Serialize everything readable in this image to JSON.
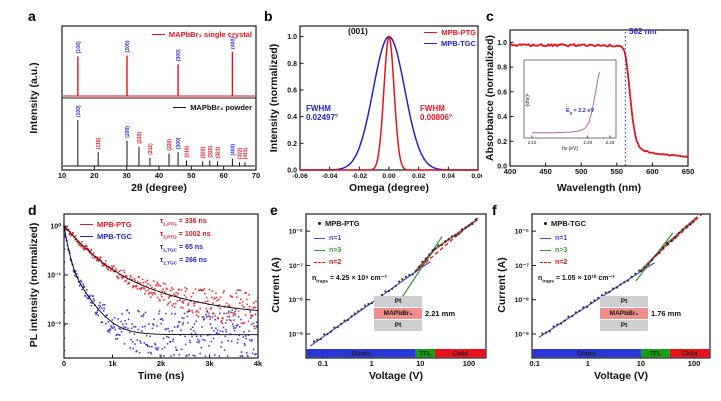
{
  "colors": {
    "red": "#e8121a",
    "blue": "#2323cc",
    "navy_label": "#2a2ad0",
    "green": "#2e9b2e",
    "black": "#111111",
    "region_blue": "#2a35d6",
    "region_green": "#17a017",
    "region_red": "#e8121a",
    "region_text": "#202020",
    "device_gray": "#cfcfcf",
    "device_salmon": "#f0908d",
    "device_text_red": "#c01010",
    "inset_curve": "#b561a8",
    "cutoff_blue": "#2a2ad0"
  },
  "chart_data": [
    {
      "panel": "a",
      "type": "bar",
      "subtype": "xrd-sticks",
      "xlabel": "2θ (degree)",
      "ylabel": "Intensity (a.u.)",
      "xlim": [
        10,
        70
      ],
      "x_ticks": [
        "10",
        "20",
        "30",
        "40",
        "50",
        "60",
        "70"
      ],
      "series": [
        {
          "name": "MAPbBr₃ single crystal",
          "color": "#e8121a",
          "label_color": "#2a2ad0",
          "peaks": [
            {
              "x": 14.9,
              "h": 0.9,
              "label": "(100)"
            },
            {
              "x": 30.1,
              "h": 0.92,
              "label": "(200)"
            },
            {
              "x": 45.9,
              "h": 0.72,
              "label": "(300)"
            },
            {
              "x": 62.7,
              "h": 1.0,
              "label": "(400)"
            }
          ]
        },
        {
          "name": "MAPbBr₃ powder",
          "color": "#111111",
          "peaks": [
            {
              "x": 14.9,
              "h": 1.0,
              "label": "(100)",
              "lc": "#2a2ad0"
            },
            {
              "x": 21.2,
              "h": 0.3,
              "label": "(110)",
              "lc": "#e8121a"
            },
            {
              "x": 30.1,
              "h": 0.55,
              "label": "(200)",
              "lc": "#2a2ad0"
            },
            {
              "x": 33.8,
              "h": 0.42,
              "label": "(210)",
              "lc": "#e8121a"
            },
            {
              "x": 37.2,
              "h": 0.18,
              "label": "(211)",
              "lc": "#e8121a"
            },
            {
              "x": 43.1,
              "h": 0.27,
              "label": "(220)",
              "lc": "#e8121a"
            },
            {
              "x": 45.9,
              "h": 0.3,
              "label": "(300)",
              "lc": "#2a2ad0"
            },
            {
              "x": 48.5,
              "h": 0.12,
              "label": "(310)",
              "lc": "#e8121a"
            },
            {
              "x": 53.5,
              "h": 0.1,
              "label": "(222)",
              "lc": "#e8121a"
            },
            {
              "x": 55.7,
              "h": 0.12,
              "label": "(320)",
              "lc": "#e8121a"
            },
            {
              "x": 58.1,
              "h": 0.1,
              "label": "(321)",
              "lc": "#e8121a"
            },
            {
              "x": 62.7,
              "h": 0.16,
              "label": "(400)",
              "lc": "#2a2ad0"
            },
            {
              "x": 64.9,
              "h": 0.08,
              "label": "(322)",
              "lc": "#e8121a"
            },
            {
              "x": 66.6,
              "h": 0.08,
              "label": "(411)",
              "lc": "#e8121a"
            }
          ]
        }
      ]
    },
    {
      "panel": "b",
      "type": "line",
      "xlabel": "Omega (degree)",
      "ylabel": "Intensity (normalized)",
      "xlim": [
        -0.06,
        0.06
      ],
      "x_ticks": [
        "-0.06",
        "-0.04",
        "-0.02",
        "0.00",
        "0.02",
        "0.04",
        "0.06"
      ],
      "ylim": [
        0,
        1.08
      ],
      "y_ticks": [
        "0.0",
        "0.2",
        "0.4",
        "0.6",
        "0.8",
        "1.0"
      ],
      "peak_label": "(001)",
      "series": [
        {
          "name": "MPB-PTG",
          "color": "#e8121a",
          "center": 0,
          "fwhm": 0.00806
        },
        {
          "name": "MPB-TGC",
          "color": "#2323cc",
          "center": 0,
          "fwhm": 0.02497
        }
      ],
      "annotations": [
        {
          "line1": "FWHM",
          "line2": "0.02497°",
          "color": "#2323cc"
        },
        {
          "line1": "FWHM",
          "line2": "0.00806°",
          "color": "#e8121a"
        }
      ]
    },
    {
      "panel": "c",
      "type": "line",
      "xlabel": "Wavelength (nm)",
      "ylabel": "Absorbance (normalized)",
      "xlim": [
        400,
        650
      ],
      "x_ticks": [
        "400",
        "450",
        "500",
        "550",
        "600",
        "650"
      ],
      "ylim": [
        0,
        1.1
      ],
      "y_ticks": [
        "0.0",
        "0.2",
        "0.4",
        "0.6",
        "0.8",
        "1.0"
      ],
      "cutoff_nm": 562,
      "cutoff_label": "562 nm",
      "series": [
        {
          "name": "absorbance",
          "color": "#e8121a",
          "points": [
            [
              400,
              0.975
            ],
            [
              430,
              0.978
            ],
            [
              460,
              0.975
            ],
            [
              490,
              0.978
            ],
            [
              520,
              0.976
            ],
            [
              545,
              0.972
            ],
            [
              556,
              0.965
            ],
            [
              560,
              0.945
            ],
            [
              563,
              0.87
            ],
            [
              566,
              0.72
            ],
            [
              569,
              0.55
            ],
            [
              572,
              0.4
            ],
            [
              575,
              0.28
            ],
            [
              578,
              0.2
            ],
            [
              582,
              0.155
            ],
            [
              588,
              0.125
            ],
            [
              600,
              0.105
            ],
            [
              620,
              0.09
            ],
            [
              650,
              0.075
            ]
          ]
        }
      ],
      "inset": {
        "xlabel": "hν (eV)",
        "ylabel": "(αhν)²",
        "x_ticks": [
          "2.10",
          "2.20",
          "2.24"
        ],
        "x_tick_vals": [
          2.1,
          2.2,
          2.24
        ],
        "eg": {
          "sym": "E",
          "sub": "g",
          "rest": " = 2.2 eV"
        },
        "color": "#b561a8",
        "points": [
          [
            2.1,
            0.02
          ],
          [
            2.14,
            0.02
          ],
          [
            2.17,
            0.03
          ],
          [
            2.185,
            0.05
          ],
          [
            2.195,
            0.09
          ],
          [
            2.202,
            0.18
          ],
          [
            2.208,
            0.38
          ],
          [
            2.213,
            0.62
          ],
          [
            2.217,
            0.82
          ],
          [
            2.221,
            1.0
          ]
        ]
      }
    },
    {
      "panel": "d",
      "type": "line",
      "xlabel": "Time (ns)",
      "ylabel": "PL intensity (normalized)",
      "xlim": [
        0,
        4000
      ],
      "x_ticks": [
        "0",
        "1k",
        "2k",
        "3k",
        "4k"
      ],
      "ylog": true,
      "y_ticks": [
        "10⁰",
        "10⁻¹",
        "10⁻²"
      ],
      "y_tick_logs": [
        0,
        -1,
        -2
      ],
      "series": [
        {
          "name": "MPB-PTG",
          "color": "#e8121a",
          "tau1": 336,
          "tau2": 1002,
          "a1": 0.8,
          "a2": 0.2,
          "floor": 0.015
        },
        {
          "name": "MPB-TGC",
          "color": "#2323cc",
          "tau1": 65,
          "tau2": 266,
          "a1": 0.8,
          "a2": 0.2,
          "floor": 0.006
        }
      ],
      "fit_color": "#000000",
      "annotations": [
        {
          "sym": "τ",
          "sub": "1,PTG",
          "rest": " = 336 ns",
          "color": "#e8121a"
        },
        {
          "sym": "τ",
          "sub": "2,PTG",
          "rest": " = 1002 ns",
          "color": "#e8121a"
        },
        {
          "sym": "τ",
          "sub": "1,TGC",
          "rest": " = 65 ns",
          "color": "#2323cc"
        },
        {
          "sym": "τ",
          "sub": "2,TGC",
          "rest": " = 266 ns",
          "color": "#2323cc"
        }
      ]
    },
    {
      "panel": "e",
      "type": "scatter",
      "sample": "MPB-PTG",
      "xlabel": "Voltage (V)",
      "ylabel": "Current (A)",
      "x_ticks": [
        "0.1",
        "1",
        "10",
        "100"
      ],
      "x_tick_vals": [
        0.1,
        1,
        10,
        100
      ],
      "y_ticks": [
        "10⁻⁶",
        "10⁻⁷",
        "10⁻⁸",
        "10⁻⁹"
      ],
      "y_tick_logs": [
        -6,
        -7,
        -8,
        -9
      ],
      "legend": [
        {
          "label": "n=1",
          "color": "#4a4ad8",
          "dash": false
        },
        {
          "label": "n>3",
          "color": "#2e9b2e",
          "dash": false
        },
        {
          "label": "n=2",
          "color": "#e8121a",
          "dash": true
        }
      ],
      "ntraps": {
        "sym": "n",
        "sub": "traps",
        "rest": " = 4.25 × 10⁹ cm⁻³"
      },
      "device": {
        "top": "Pt",
        "mid": "MAPbBr₃",
        "bottom": "Pt",
        "thickness": "2.21 mm"
      },
      "regions": [
        {
          "label": "Ohmic",
          "color": "#2a35d6",
          "from": 0.045,
          "to": 8
        },
        {
          "label": "TFL",
          "color": "#17a017",
          "from": 8,
          "to": 20
        },
        {
          "label": "Child",
          "color": "#e8121a",
          "from": 20,
          "to": 230
        }
      ],
      "data_segments": [
        [
          [
            0.065,
            5.5e-10
          ],
          [
            8,
            6.8e-08
          ]
        ],
        [
          [
            8,
            6.8e-08
          ],
          [
            20,
            3e-07
          ]
        ],
        [
          [
            20,
            3e-07
          ],
          [
            150,
            2.2e-06
          ]
        ]
      ],
      "lines": {
        "n1": [
          [
            0.055,
            4.5e-10
          ],
          [
            16,
            1.3e-07
          ]
        ],
        "n3": [
          [
            4,
            1.05e-08
          ],
          [
            28,
            7e-07
          ]
        ],
        "n2": [
          [
            10,
            9e-08
          ],
          [
            160,
            2.6e-06
          ]
        ]
      }
    },
    {
      "panel": "f",
      "type": "scatter",
      "sample": "MPB-TGC",
      "xlabel": "Voltage (V)",
      "ylabel": "Current (A)",
      "x_ticks": [
        "0.1",
        "1",
        "10",
        "100"
      ],
      "x_tick_vals": [
        0.1,
        1,
        10,
        100
      ],
      "y_ticks": [
        "10⁻⁶",
        "10⁻⁷",
        "10⁻⁸",
        "10⁻⁹"
      ],
      "y_tick_logs": [
        -6,
        -7,
        -8,
        -9
      ],
      "legend": [
        {
          "label": "n=1",
          "color": "#4a4ad8",
          "dash": false
        },
        {
          "label": "n>3",
          "color": "#2e9b2e",
          "dash": false
        },
        {
          "label": "n=2",
          "color": "#e8121a",
          "dash": true
        }
      ],
      "ntraps": {
        "sym": "n",
        "sub": "traps",
        "rest": " = 1.05 × 10¹⁰ cm⁻³"
      },
      "device": {
        "top": "Pt",
        "mid": "MAPbBr₃",
        "bottom": "Pt",
        "thickness": "1.76 mm"
      },
      "regions": [
        {
          "label": "Ohmic",
          "color": "#2a35d6",
          "from": 0.09,
          "to": 10
        },
        {
          "label": "TFL",
          "color": "#17a017",
          "from": 10,
          "to": 35
        },
        {
          "label": "Child",
          "color": "#e8121a",
          "from": 35,
          "to": 200
        }
      ],
      "data_segments": [
        [
          [
            0.14,
            9.5e-10
          ],
          [
            10,
            7e-08
          ]
        ],
        [
          [
            10,
            7e-08
          ],
          [
            32,
            4.5e-07
          ]
        ],
        [
          [
            32,
            4.5e-07
          ],
          [
            115,
            2.6e-06
          ]
        ]
      ],
      "lines": {
        "n1": [
          [
            0.12,
            8e-10
          ],
          [
            18,
            1.2e-07
          ]
        ],
        "n3": [
          [
            8,
            3.5e-08
          ],
          [
            40,
            9e-07
          ]
        ],
        "n2": [
          [
            16,
            1.5e-07
          ],
          [
            140,
            3.1e-06
          ]
        ]
      }
    }
  ]
}
